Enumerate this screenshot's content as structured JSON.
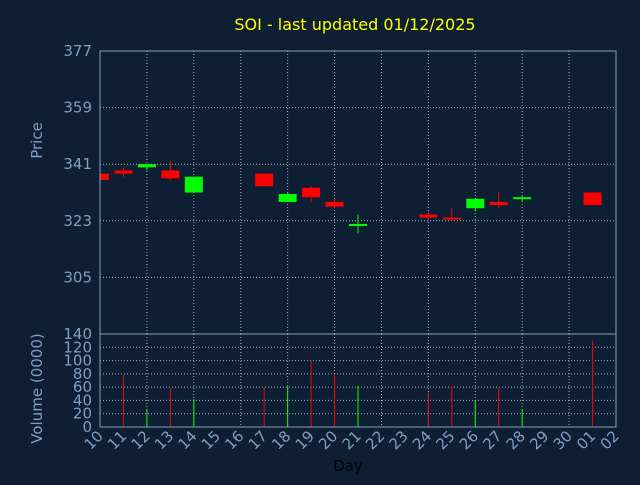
{
  "colors": {
    "background": "#0f1f33",
    "title": "#ffff00",
    "axis_text": "#7f9fbf",
    "grid": "#9fb0c0",
    "frame": "#7f9fbf",
    "up": "#00ff00",
    "down": "#ff0000"
  },
  "chart_data": [
    {
      "type": "candlestick",
      "title": "SOI - last updated 01/12/2025",
      "ylabel": "Price",
      "ylim": [
        287,
        377
      ],
      "yticks": [
        305,
        323,
        341,
        359,
        377
      ],
      "grid": true,
      "categories": [
        "10",
        "11",
        "12",
        "13",
        "14",
        "15",
        "16",
        "17",
        "18",
        "19",
        "20",
        "21",
        "22",
        "23",
        "24",
        "25",
        "26",
        "27",
        "28",
        "29",
        "30",
        "01",
        "02"
      ],
      "candles": [
        {
          "day": "10",
          "open": 338,
          "high": 339,
          "low": 336,
          "close": 336,
          "dir": "down"
        },
        {
          "day": "11",
          "open": 339,
          "high": 340,
          "low": 337,
          "close": 338,
          "dir": "down"
        },
        {
          "day": "12",
          "open": 340,
          "high": 341,
          "low": 339,
          "close": 341,
          "dir": "up"
        },
        {
          "day": "13",
          "open": 339,
          "high": 342,
          "low": 336,
          "close": 336.5,
          "dir": "down"
        },
        {
          "day": "14",
          "open": 332,
          "high": 337,
          "low": 332,
          "close": 337,
          "dir": "up"
        },
        {
          "day": "17",
          "open": 338,
          "high": 338,
          "low": 334,
          "close": 334,
          "dir": "down"
        },
        {
          "day": "18",
          "open": 329,
          "high": 332,
          "low": 329,
          "close": 331.5,
          "dir": "up"
        },
        {
          "day": "19",
          "open": 333.5,
          "high": 334,
          "low": 329,
          "close": 330.5,
          "dir": "down"
        },
        {
          "day": "20",
          "open": 329,
          "high": 330,
          "low": 327,
          "close": 327.5,
          "dir": "down"
        },
        {
          "day": "21",
          "open": 321.5,
          "high": 325,
          "low": 319,
          "close": 322,
          "dir": "up"
        },
        {
          "day": "24",
          "open": 325,
          "high": 326,
          "low": 323,
          "close": 324,
          "dir": "down"
        },
        {
          "day": "25",
          "open": 324,
          "high": 327,
          "low": 323,
          "close": 323.5,
          "dir": "down"
        },
        {
          "day": "26",
          "open": 327,
          "high": 330,
          "low": 326,
          "close": 330,
          "dir": "up"
        },
        {
          "day": "27",
          "open": 329,
          "high": 332,
          "low": 327,
          "close": 328,
          "dir": "down"
        },
        {
          "day": "28",
          "open": 330,
          "high": 331,
          "low": 329,
          "close": 330.5,
          "dir": "up"
        },
        {
          "day": "01",
          "open": 332,
          "high": 332,
          "low": 328,
          "close": 328,
          "dir": "down"
        }
      ]
    },
    {
      "type": "bar",
      "ylabel": "Volume (0000)",
      "xlabel": "Day",
      "ylim": [
        0,
        140
      ],
      "yticks": [
        0,
        20,
        40,
        60,
        80,
        100,
        120,
        140
      ],
      "grid": true,
      "categories": [
        "10",
        "11",
        "12",
        "13",
        "14",
        "15",
        "16",
        "17",
        "18",
        "19",
        "20",
        "21",
        "22",
        "23",
        "24",
        "25",
        "26",
        "27",
        "28",
        "29",
        "30",
        "01",
        "02"
      ],
      "bars": [
        {
          "day": "11",
          "value": 78,
          "dir": "down"
        },
        {
          "day": "12",
          "value": 26,
          "dir": "up"
        },
        {
          "day": "13",
          "value": 58,
          "dir": "down"
        },
        {
          "day": "14",
          "value": 42,
          "dir": "up"
        },
        {
          "day": "17",
          "value": 60,
          "dir": "down"
        },
        {
          "day": "18",
          "value": 61,
          "dir": "up"
        },
        {
          "day": "19",
          "value": 100,
          "dir": "down"
        },
        {
          "day": "20",
          "value": 79,
          "dir": "down"
        },
        {
          "day": "21",
          "value": 62,
          "dir": "up"
        },
        {
          "day": "24",
          "value": 52,
          "dir": "down"
        },
        {
          "day": "25",
          "value": 62,
          "dir": "down"
        },
        {
          "day": "26",
          "value": 40,
          "dir": "up"
        },
        {
          "day": "27",
          "value": 58,
          "dir": "down"
        },
        {
          "day": "28",
          "value": 26,
          "dir": "up"
        },
        {
          "day": "01",
          "value": 130,
          "dir": "down"
        }
      ]
    }
  ]
}
